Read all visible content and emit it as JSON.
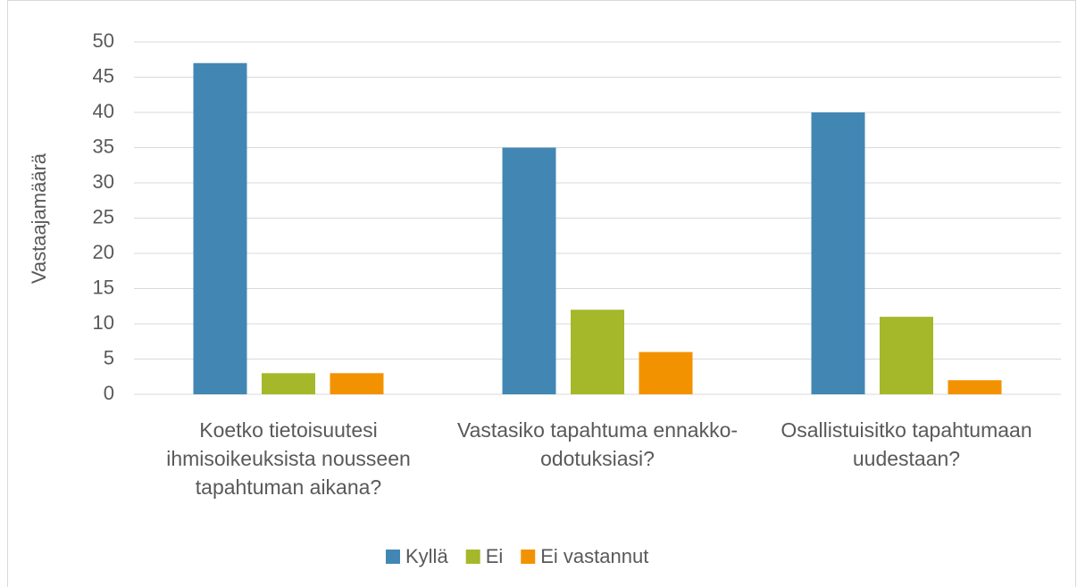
{
  "chart_data": {
    "type": "bar",
    "y_label": "Vastaajamäärä",
    "categories": [
      "Koetko tietoisuutesi ihmisoikeuksista nousseen tapahtuman aikana?",
      "Vastasiko tapahtuma ennakko-odotuksiasi?",
      "Osallistuisitko tapahtumaan uudestaan?"
    ],
    "series": [
      {
        "name": "Kyllä",
        "color": "#4287b4",
        "values": [
          47,
          35,
          40
        ]
      },
      {
        "name": "Ei",
        "color": "#a5b82a",
        "values": [
          3,
          12,
          11
        ]
      },
      {
        "name": "Ei vastannut",
        "color": "#f39200",
        "values": [
          3,
          6,
          2
        ]
      }
    ],
    "ylim": [
      0,
      50
    ],
    "yticks": [
      0,
      5,
      10,
      15,
      20,
      25,
      30,
      35,
      40,
      45,
      50
    ],
    "grid": true,
    "legend": "bottom"
  }
}
